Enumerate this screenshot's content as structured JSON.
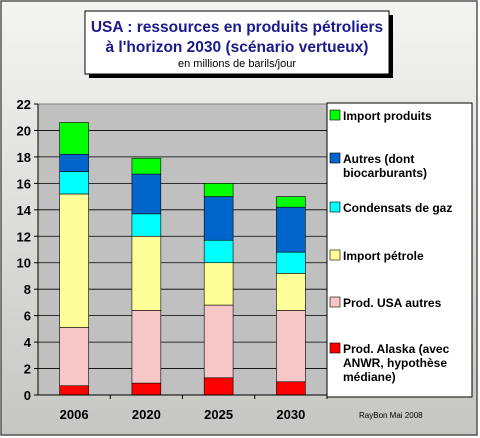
{
  "chart_data": {
    "type": "bar",
    "stacked": true,
    "title": "USA : ressources en produits pétroliers",
    "title_line2": "à l'horizon 2030 (scénario vertueux)",
    "subtitle": "en millions de barils/jour",
    "xlabel": "",
    "ylabel": "",
    "categories": [
      "2006",
      "2020",
      "2025",
      "2030"
    ],
    "ylim": [
      0,
      22
    ],
    "yticks": [
      "0",
      "2",
      "4",
      "6",
      "8",
      "10",
      "12",
      "14",
      "16",
      "18",
      "20",
      "22"
    ],
    "grid": true,
    "legend_position": "right",
    "credit": "RayBon Mai 2008",
    "series": [
      {
        "name": "Prod. Alaska (avec ANWR, hypothèse médiane)",
        "legend_lines": [
          "Prod. Alaska (avec",
          "ANWR, hypothèse",
          "médiane)"
        ],
        "color": "#ff0000",
        "values": [
          0.7,
          0.9,
          1.3,
          1.0
        ]
      },
      {
        "name": "Prod. USA autres",
        "legend_lines": [
          "Prod. USA autres"
        ],
        "color": "#f7c6c6",
        "values": [
          4.4,
          5.5,
          5.5,
          5.4
        ]
      },
      {
        "name": "Import pétrole",
        "legend_lines": [
          "Import pétrole"
        ],
        "color": "#ffff99",
        "values": [
          10.1,
          5.6,
          3.2,
          2.8
        ]
      },
      {
        "name": "Condensats de gaz",
        "legend_lines": [
          "Condensats de gaz"
        ],
        "color": "#00ffff",
        "values": [
          1.7,
          1.7,
          1.7,
          1.6
        ]
      },
      {
        "name": "Autres (dont biocarburants)",
        "legend_lines": [
          "Autres (dont",
          "biocarburants)"
        ],
        "color": "#0066cc",
        "values": [
          1.3,
          3.0,
          3.3,
          3.4
        ]
      },
      {
        "name": "Import produits",
        "legend_lines": [
          "Import produits"
        ],
        "color": "#00ff00",
        "values": [
          2.4,
          1.2,
          1.0,
          0.8
        ]
      }
    ]
  }
}
